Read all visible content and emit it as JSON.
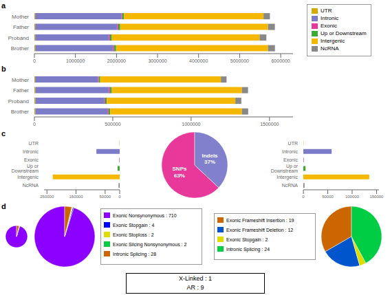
{
  "chart_data": [
    {
      "type": "bar",
      "title": "a",
      "orientation": "horizontal",
      "stacked": true,
      "legend": "right",
      "categories": [
        "Brother",
        "Proband",
        "Father",
        "Mother"
      ],
      "series": [
        {
          "name": "UTR",
          "color": "#d4aa00",
          "values": [
            20000,
            20000,
            20000,
            20000
          ]
        },
        {
          "name": "Intronic",
          "color": "#7b7bc8",
          "values": [
            1900000,
            1800000,
            2000000,
            2100000
          ]
        },
        {
          "name": "Exonic",
          "color": "#e8399a",
          "values": [
            25000,
            23000,
            24000,
            22000
          ]
        },
        {
          "name": "Up or Downstream",
          "color": "#3aaa35",
          "values": [
            45000,
            43000,
            46000,
            40000
          ]
        },
        {
          "name": "Intergenic",
          "color": "#f5b800",
          "values": [
            3700000,
            3600000,
            3600000,
            3400000
          ]
        },
        {
          "name": "NcRNA",
          "color": "#888888",
          "values": [
            170000,
            165000,
            168000,
            155000
          ]
        }
      ],
      "xlim": [
        0,
        6300000
      ],
      "xticks": [
        0,
        1000000,
        2000000,
        3000000,
        4000000,
        5000000,
        6000000
      ]
    },
    {
      "type": "bar",
      "title": "b",
      "orientation": "horizontal",
      "stacked": true,
      "categories": [
        "Brother",
        "Proband",
        "Father",
        "Mother"
      ],
      "series": [
        {
          "name": "UTR",
          "color": "#d4aa00",
          "values": [
            6000,
            6000,
            6000,
            5000
          ]
        },
        {
          "name": "Intronic",
          "color": "#7b7bc8",
          "values": [
            460000,
            440000,
            470000,
            400000
          ]
        },
        {
          "name": "Exonic",
          "color": "#e8399a",
          "values": [
            7000,
            6000,
            7000,
            6000
          ]
        },
        {
          "name": "Up or Downstream",
          "color": "#3aaa35",
          "values": [
            11000,
            10000,
            11000,
            9000
          ]
        },
        {
          "name": "Intergenic",
          "color": "#f5b800",
          "values": [
            840000,
            820000,
            830000,
            770000
          ]
        },
        {
          "name": "NcRNA",
          "color": "#888888",
          "values": [
            40000,
            38000,
            39000,
            36000
          ]
        }
      ],
      "xlim": [
        0,
        1650000
      ],
      "xticks": [
        0,
        500000,
        1000000,
        1500000
      ]
    },
    {
      "type": "bar",
      "title": "c",
      "orientation": "horizontal",
      "categories": [
        "NcRNA",
        "Intergenic",
        "Up or Downstream",
        "Exonic",
        "Intronic",
        "UTR"
      ],
      "values": [
        4000,
        230000,
        7000,
        1500,
        80000,
        800
      ],
      "colors": [
        "#888888",
        "#f5b800",
        "#3aaa35",
        "#e8399a",
        "#7b7bc8",
        "#d4aa00"
      ],
      "xlim": [
        260000,
        0
      ],
      "xticks": [
        250000,
        150000,
        50000,
        0
      ]
    },
    {
      "type": "pie",
      "categories": [
        "SNPs",
        "Indels"
      ],
      "values": [
        63,
        37
      ],
      "value_labels": [
        "63%",
        "37%"
      ],
      "colors": [
        "#e8399a",
        "#8080cc"
      ],
      "data_labels": true
    },
    {
      "type": "bar",
      "orientation": "horizontal",
      "categories": [
        "NcRNA",
        "Intergenic",
        "Up or Downstream",
        "Exonic",
        "Intronic",
        "UTR"
      ],
      "values": [
        2500,
        135000,
        4500,
        900,
        58000,
        400
      ],
      "colors": [
        "#888888",
        "#f5b800",
        "#3aaa35",
        "#e8399a",
        "#7b7bc8",
        "#d4aa00"
      ],
      "xlim": [
        0,
        155000
      ],
      "xticks": [
        0,
        50000,
        100000,
        150000
      ]
    },
    {
      "type": "pie",
      "title": "d",
      "legend": "right",
      "categories": [
        "Exonic Nonsynonymous : 710",
        "Exonic Stopgain : 4",
        "Exonic Stoploss : 2",
        "Exonic Silcing Nonsynonymous : 2",
        "Intronic Splicing : 28"
      ],
      "values": [
        710,
        4,
        2,
        2,
        28
      ],
      "colors": [
        "#8c00ff",
        "#0000ff",
        "#dddd00",
        "#00cc44",
        "#cc6600"
      ]
    },
    {
      "type": "pie",
      "legend": "left",
      "categories": [
        "Exonic Frameshift Insertion : 19",
        "Exonic Frameshift Deletion : 12",
        "Exonic Stopgain : 2",
        "Intronic Splicing : 24"
      ],
      "values": [
        19,
        12,
        2,
        24
      ],
      "colors": [
        "#cc6600",
        "#0055cc",
        "#dddd00",
        "#00cc44"
      ],
      "annotations": [
        "X-Linked : 1",
        "AR : 9"
      ]
    }
  ]
}
